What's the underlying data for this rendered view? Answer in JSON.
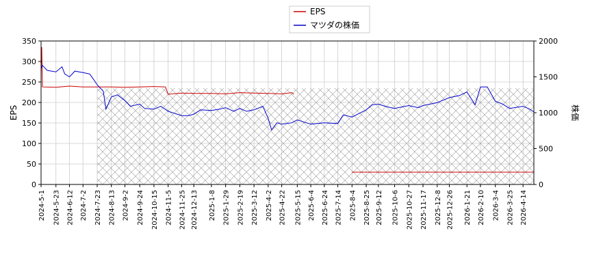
{
  "chart_data": {
    "type": "line",
    "title": "",
    "xlabel": "",
    "ylabel": "EPS",
    "y2label": "株価",
    "x_range": [
      "2024-05-01",
      "2026-04-30"
    ],
    "ylim": [
      0,
      350
    ],
    "y2lim": [
      0,
      2000
    ],
    "y_ticks": [
      0,
      50,
      100,
      150,
      200,
      250,
      300,
      350
    ],
    "y2_ticks": [
      0,
      500,
      1000,
      1500,
      2000
    ],
    "x_ticks": [
      "2024-5-1",
      "2024-5-23",
      "2024-6-12",
      "2024-7-2",
      "2024-7-23",
      "2024-8-13",
      "2024-9-2",
      "2024-9-24",
      "2024-10-15",
      "2024-11-5",
      "2024-11-25",
      "2024-12-13",
      "2025-1-8",
      "2025-1-29",
      "2025-2-19",
      "2025-3-12",
      "2025-4-2",
      "2025-4-22",
      "2025-5-15",
      "2025-6-4",
      "2025-6-24",
      "2025-7-14",
      "2025-8-4",
      "2025-8-25",
      "2025-9-12",
      "2025-10-6",
      "2025-10-27",
      "2025-11-17",
      "2025-12-8",
      "2025-12-26",
      "2026-1-21",
      "2026-2-10",
      "2026-3-4",
      "2026-3-25",
      "2026-4-14"
    ],
    "grid": true,
    "legend_placement": "top-center",
    "forecast_region": {
      "start": "2024-07-23",
      "end": "2026-04-30",
      "eps_level": 235
    },
    "series": [
      {
        "name": "EPS",
        "axis": "left",
        "color": "#cc0000",
        "points": [
          [
            "2024-05-01",
            270
          ],
          [
            "2024-05-02",
            335
          ],
          [
            "2024-05-03",
            238
          ],
          [
            "2024-05-23",
            237
          ],
          [
            "2024-06-12",
            240
          ],
          [
            "2024-07-02",
            238
          ],
          [
            "2024-07-23",
            238
          ],
          [
            "2024-08-13",
            238
          ],
          [
            "2024-09-02",
            237
          ],
          [
            "2024-09-24",
            238
          ],
          [
            "2024-10-15",
            239
          ],
          [
            "2024-11-01",
            238
          ],
          [
            "2024-11-05",
            220
          ],
          [
            "2024-11-25",
            223
          ],
          [
            "2024-12-13",
            222
          ],
          [
            "2025-01-08",
            222
          ],
          [
            "2025-01-29",
            221
          ],
          [
            "2025-02-19",
            224
          ],
          [
            "2025-03-12",
            223
          ],
          [
            "2025-04-02",
            222
          ],
          [
            "2025-04-22",
            221
          ],
          [
            "2025-05-07",
            224
          ],
          [
            "2025-05-10",
            220
          ]
        ]
      },
      {
        "name": "EPS",
        "axis": "left",
        "color": "#cc0000",
        "points": [
          [
            "2025-08-04",
            30
          ],
          [
            "2026-04-30",
            30
          ]
        ]
      },
      {
        "name": "マツダの株価",
        "axis": "right",
        "color": "#0000cc",
        "points": [
          [
            "2024-05-01",
            1620
          ],
          [
            "2024-05-03",
            1660
          ],
          [
            "2024-05-10",
            1590
          ],
          [
            "2024-05-23",
            1570
          ],
          [
            "2024-06-01",
            1640
          ],
          [
            "2024-06-05",
            1540
          ],
          [
            "2024-06-12",
            1500
          ],
          [
            "2024-06-20",
            1580
          ],
          [
            "2024-07-02",
            1560
          ],
          [
            "2024-07-12",
            1540
          ],
          [
            "2024-07-18",
            1460
          ],
          [
            "2024-07-23",
            1390
          ],
          [
            "2024-08-01",
            1300
          ],
          [
            "2024-08-05",
            1050
          ],
          [
            "2024-08-13",
            1220
          ],
          [
            "2024-08-22",
            1250
          ],
          [
            "2024-09-02",
            1170
          ],
          [
            "2024-09-10",
            1090
          ],
          [
            "2024-09-24",
            1120
          ],
          [
            "2024-10-01",
            1060
          ],
          [
            "2024-10-15",
            1050
          ],
          [
            "2024-10-25",
            1090
          ],
          [
            "2024-11-05",
            1020
          ],
          [
            "2024-11-15",
            990
          ],
          [
            "2024-11-25",
            960
          ],
          [
            "2024-12-05",
            960
          ],
          [
            "2024-12-13",
            980
          ],
          [
            "2024-12-23",
            1040
          ],
          [
            "2025-01-08",
            1030
          ],
          [
            "2025-01-20",
            1050
          ],
          [
            "2025-01-29",
            1070
          ],
          [
            "2025-02-10",
            1020
          ],
          [
            "2025-02-19",
            1060
          ],
          [
            "2025-03-01",
            1020
          ],
          [
            "2025-03-12",
            1040
          ],
          [
            "2025-03-25",
            1090
          ],
          [
            "2025-04-02",
            920
          ],
          [
            "2025-04-07",
            760
          ],
          [
            "2025-04-15",
            860
          ],
          [
            "2025-04-22",
            840
          ],
          [
            "2025-05-07",
            860
          ],
          [
            "2025-05-15",
            900
          ],
          [
            "2025-06-04",
            840
          ],
          [
            "2025-06-24",
            860
          ],
          [
            "2025-07-14",
            850
          ],
          [
            "2025-07-22",
            970
          ],
          [
            "2025-08-04",
            940
          ],
          [
            "2025-08-25",
            1040
          ],
          [
            "2025-09-03",
            1110
          ],
          [
            "2025-09-12",
            1120
          ],
          [
            "2025-09-22",
            1090
          ],
          [
            "2025-10-06",
            1060
          ],
          [
            "2025-10-27",
            1100
          ],
          [
            "2025-11-10",
            1070
          ],
          [
            "2025-11-17",
            1100
          ],
          [
            "2025-12-08",
            1140
          ],
          [
            "2025-12-26",
            1210
          ],
          [
            "2026-01-10",
            1240
          ],
          [
            "2026-01-21",
            1290
          ],
          [
            "2026-02-02",
            1110
          ],
          [
            "2026-02-10",
            1360
          ],
          [
            "2026-02-20",
            1360
          ],
          [
            "2026-03-04",
            1160
          ],
          [
            "2026-03-15",
            1120
          ],
          [
            "2026-03-25",
            1060
          ],
          [
            "2026-04-14",
            1090
          ],
          [
            "2026-04-24",
            1050
          ],
          [
            "2026-04-30",
            1010
          ]
        ]
      }
    ]
  }
}
